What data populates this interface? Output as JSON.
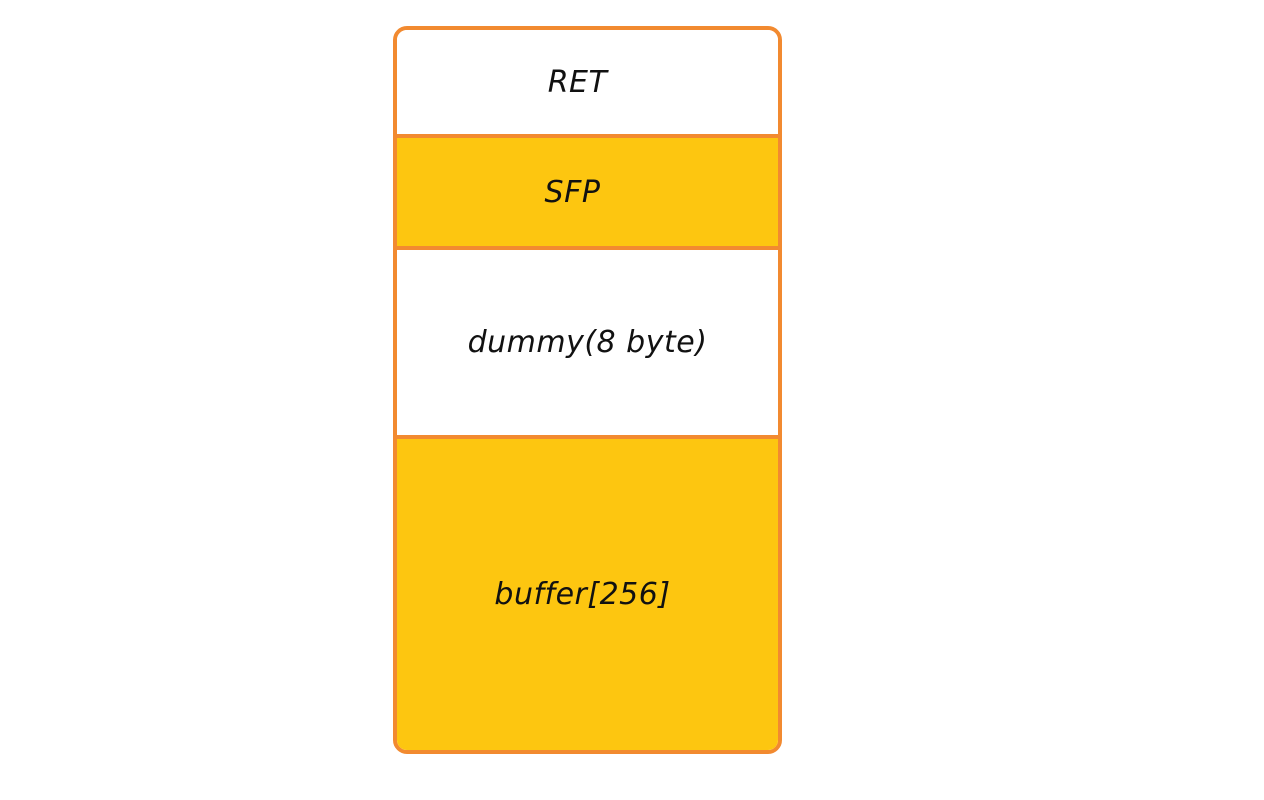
{
  "stack_diagram": {
    "segments": [
      {
        "label": "RET",
        "color": "#ffffff"
      },
      {
        "label": "SFP",
        "color": "#fdc610"
      },
      {
        "label": "dummy(8 byte)",
        "color": "#ffffff"
      },
      {
        "label": "buffer[256]",
        "color": "#fdc610"
      }
    ],
    "border_color": "#f28a30"
  }
}
